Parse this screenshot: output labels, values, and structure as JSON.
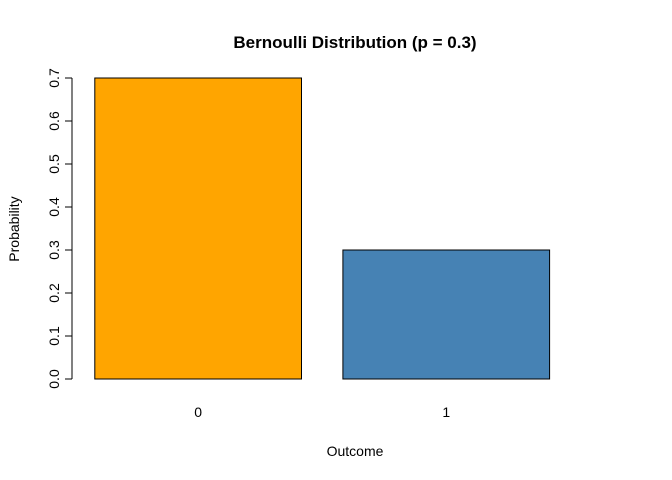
{
  "chart_data": {
    "type": "bar",
    "title": "Bernoulli Distribution (p = 0.3)",
    "xlabel": "Outcome",
    "ylabel": "Probability",
    "categories": [
      "0",
      "1"
    ],
    "values": [
      0.7,
      0.3
    ],
    "colors": [
      "#FFA500",
      "#4682B4"
    ],
    "ylim": [
      0,
      0.7
    ],
    "yticks": [
      0.0,
      0.1,
      0.2,
      0.3,
      0.4,
      0.5,
      0.6,
      0.7
    ],
    "ytick_labels": [
      "0.0",
      "0.1",
      "0.2",
      "0.3",
      "0.4",
      "0.5",
      "0.6",
      "0.7"
    ],
    "grid": false,
    "legend": "none"
  }
}
